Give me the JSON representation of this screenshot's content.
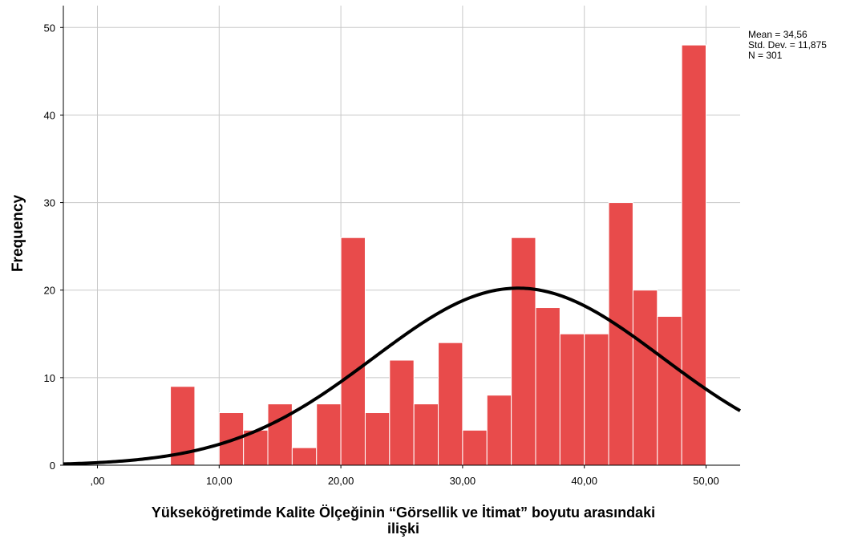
{
  "chart_data": {
    "type": "bar",
    "subtype": "histogram",
    "xlabel_line1": "Yükseköğretimde Kalite Ölçeğinin “Görsellik ve İtimat” boyutu arasındaki",
    "xlabel_line2": "ilişki",
    "ylabel": "Frequency",
    "xlim": [
      -2.8,
      52.8
    ],
    "ylim": [
      0,
      52.5
    ],
    "x_ticks": [
      0,
      10,
      20,
      30,
      40,
      50
    ],
    "x_tick_labels": [
      ",00",
      "10,00",
      "20,00",
      "30,00",
      "40,00",
      "50,00"
    ],
    "y_ticks": [
      0,
      10,
      20,
      30,
      40,
      50
    ],
    "y_tick_labels": [
      "0",
      "10",
      "20",
      "30",
      "40",
      "50"
    ],
    "bin_width": 2,
    "bins": [
      {
        "start": 6,
        "value": 9
      },
      {
        "start": 8,
        "value": 0
      },
      {
        "start": 10,
        "value": 6
      },
      {
        "start": 12,
        "value": 4
      },
      {
        "start": 14,
        "value": 7
      },
      {
        "start": 16,
        "value": 2
      },
      {
        "start": 18,
        "value": 7
      },
      {
        "start": 20,
        "value": 26
      },
      {
        "start": 22,
        "value": 6
      },
      {
        "start": 24,
        "value": 12
      },
      {
        "start": 26,
        "value": 7
      },
      {
        "start": 28,
        "value": 14
      },
      {
        "start": 30,
        "value": 4
      },
      {
        "start": 32,
        "value": 8
      },
      {
        "start": 34,
        "value": 26
      },
      {
        "start": 36,
        "value": 18
      },
      {
        "start": 38,
        "value": 15
      },
      {
        "start": 40,
        "value": 15
      },
      {
        "start": 42,
        "value": 30
      },
      {
        "start": 44,
        "value": 20
      },
      {
        "start": 46,
        "value": 17
      },
      {
        "start": 48,
        "value": 48
      }
    ],
    "normal_curve": {
      "mean": 34.56,
      "sd": 11.875,
      "n": 301
    },
    "stats_text": [
      "Mean = 34,56",
      "Std. Dev. = 11,875",
      "N = 301"
    ],
    "grid": true,
    "colors": {
      "bar": "#e84b4b",
      "bar_stroke": "#ffffff",
      "curve": "#000000",
      "grid": "#c8c8c8",
      "axis": "#000000"
    }
  }
}
